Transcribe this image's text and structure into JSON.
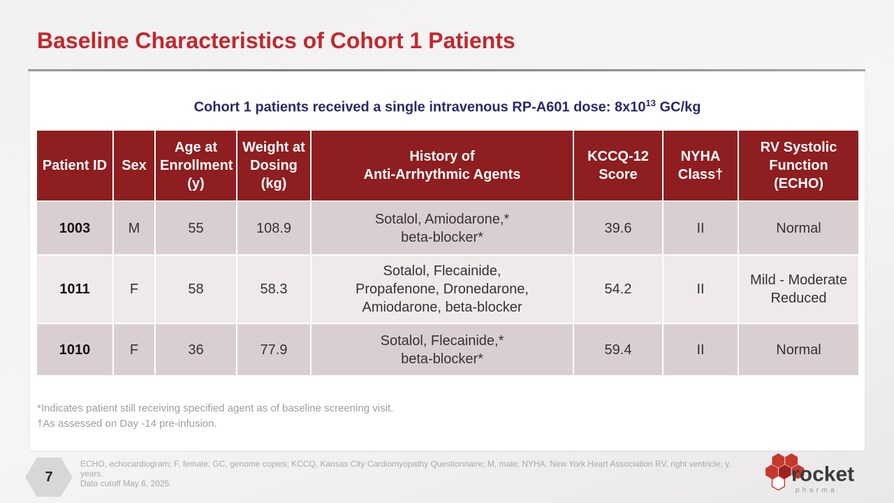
{
  "slide": {
    "title": "Baseline Characteristics of Cohort 1 Patients",
    "page_number": "7"
  },
  "subtitle": {
    "prefix": "Cohort 1 patients received a single intravenous RP-A601 dose: 8x10",
    "superscript": "13",
    "suffix": " GC/kg"
  },
  "table": {
    "headers": [
      "Patient ID",
      "Sex",
      "Age at\nEnrollment\n(y)",
      "Weight at\nDosing\n(kg)",
      "History of\nAnti-Arrhythmic Agents",
      "KCCQ-12\nScore",
      "NYHA\nClass†",
      "RV Systolic\nFunction\n(ECHO)"
    ],
    "rows": [
      {
        "cells": [
          "1003",
          "M",
          "55",
          "108.9",
          "Sotalol, Amiodarone,*\nbeta-blocker*",
          "39.6",
          "II",
          "Normal"
        ]
      },
      {
        "cells": [
          "1011",
          "F",
          "58",
          "58.3",
          "Sotalol, Flecainide,\nPropafenone, Dronedarone,\nAmiodarone, beta-blocker",
          "54.2",
          "II",
          "Mild - Moderate\nReduced"
        ]
      },
      {
        "cells": [
          "1010",
          "F",
          "36",
          "77.9",
          "Sotalol, Flecainide,*\nbeta-blocker*",
          "59.4",
          "II",
          "Normal"
        ]
      }
    ]
  },
  "footnotes": [
    "*Indicates patient still receiving specified agent as of baseline screening visit.",
    "†As assessed on Day -14 pre-infusion."
  ],
  "footer": {
    "abbreviations": "ECHO, echocardiogram; F, female; GC, genome copies; KCCQ, Kansas City Cardiomyopathy Questionnaire; M, male; NYHA, New York Heart Association RV, right ventricle; y, years.",
    "data_cutoff": "Data cutoff May 6, 2025."
  },
  "logo": {
    "brand": "rocket",
    "sub_brand": "pharma"
  },
  "colors": {
    "title_red": "#c3282d",
    "subtitle_navy": "#2b2968",
    "header_red": "#8e1e20",
    "row_odd": "#dacfd0",
    "row_even": "#efe9ea",
    "logo_red": "#c5382c",
    "logo_dark_red": "#9e231f"
  }
}
